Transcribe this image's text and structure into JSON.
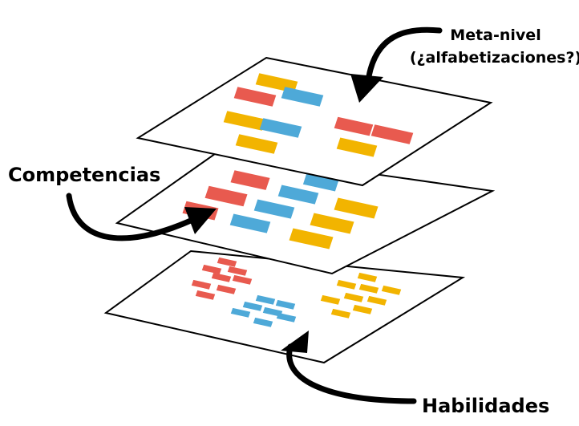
{
  "labels": {
    "meta_line1": "Meta-nivel",
    "meta_line2": "(¿alfabetizaciones?)",
    "competencias": "Competencias",
    "habilidades": "Habilidades"
  },
  "colors": {
    "red": "#e85a4f",
    "blue": "#4ea9d8",
    "yellow": "#f2b400",
    "outline": "#000000"
  },
  "layers": [
    {
      "id": "meta-nivel",
      "clusters": [
        "yellow-red-blue",
        "yellow-blue",
        "red-yellow"
      ]
    },
    {
      "id": "competencias",
      "clusters": [
        "red",
        "blue",
        "yellow"
      ]
    },
    {
      "id": "habilidades",
      "clusters": [
        "red",
        "blue",
        "yellow"
      ]
    }
  ]
}
